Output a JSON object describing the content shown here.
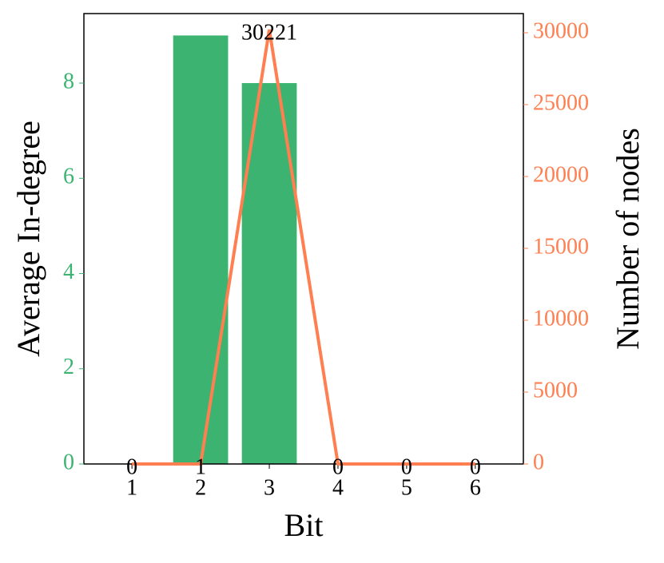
{
  "chart_data": {
    "type": "bar",
    "xlabel": "Bit",
    "ylabel": "Average In-degree",
    "y2label": "Number of nodes",
    "x": [
      1,
      2,
      3,
      4,
      5,
      6
    ],
    "xlim": [
      0.3,
      6.7
    ],
    "xticks": [
      1,
      2,
      3,
      4,
      5,
      6
    ],
    "ylim": [
      0,
      9.46
    ],
    "yticks": [
      0,
      2,
      4,
      6,
      8
    ],
    "y2lim": [
      0,
      31333
    ],
    "y2ticks": [
      0,
      5000,
      10000,
      15000,
      20000,
      25000,
      30000
    ],
    "series": [
      {
        "type": "bar",
        "color": "#3cb371",
        "values": [
          0,
          9,
          8,
          0,
          0,
          0
        ]
      },
      {
        "type": "line",
        "color": "#ff7f50",
        "axis": "y2",
        "values": [
          0,
          1,
          30221,
          0,
          0,
          0
        ]
      }
    ]
  }
}
